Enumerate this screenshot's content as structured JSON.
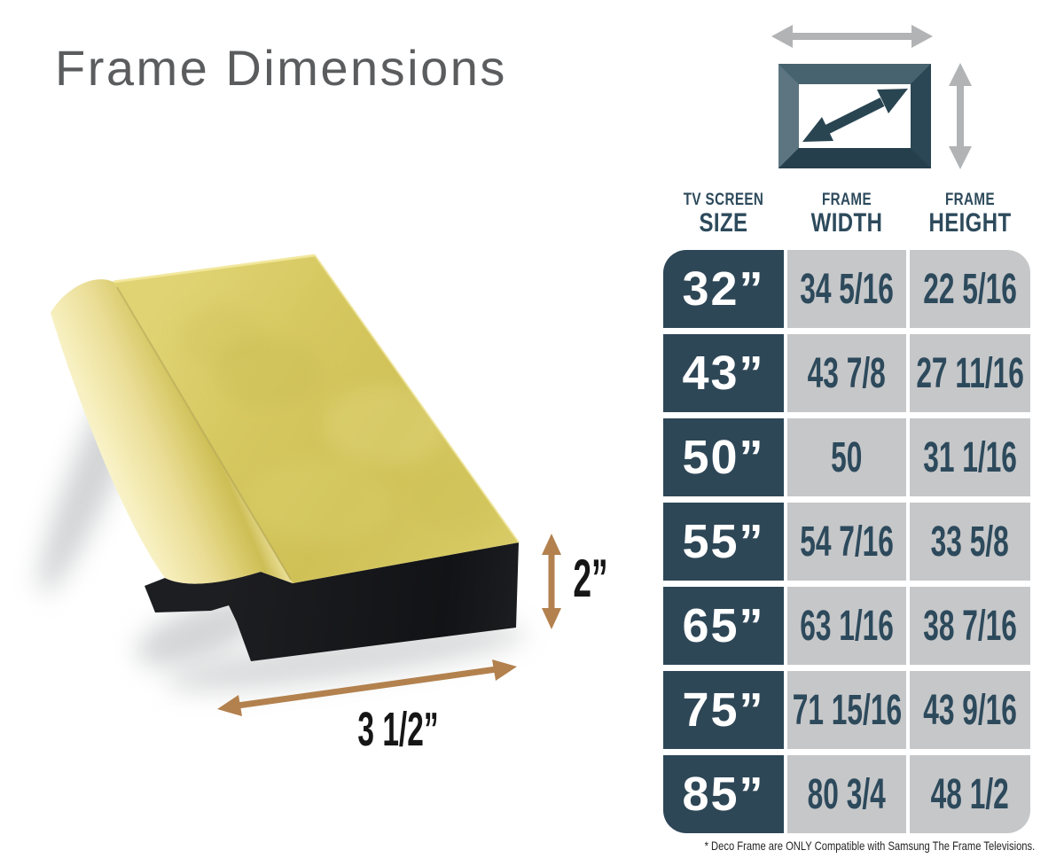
{
  "title": "Frame Dimensions",
  "illustration": {
    "height_label": "2”",
    "width_label": "3 1/2”"
  },
  "table": {
    "columns": [
      {
        "line1": "TV SCREEN",
        "line2": "SIZE"
      },
      {
        "line1": "FRAME",
        "line2": "WIDTH"
      },
      {
        "line1": "FRAME",
        "line2": "HEIGHT"
      }
    ],
    "rows": [
      {
        "size": "32”",
        "width": "34 5/16",
        "height": "22 5/16"
      },
      {
        "size": "43”",
        "width": "43 7/8",
        "height": "27 11/16"
      },
      {
        "size": "50”",
        "width": "50",
        "height": "31 1/16"
      },
      {
        "size": "55”",
        "width": "54 7/16",
        "height": "33 5/8"
      },
      {
        "size": "65”",
        "width": "63 1/16",
        "height": "38 7/16"
      },
      {
        "size": "75”",
        "width": "71 15/16",
        "height": "43 9/16"
      },
      {
        "size": "85”",
        "width": "80 3/4",
        "height": "48 1/2"
      }
    ]
  },
  "footnote": "* Deco Frame are ONLY Compatible with Samsung The Frame Televisions.",
  "colors": {
    "slate": "#2e4757",
    "cell_gray": "#c6c7c9",
    "arrow_gray": "#b1b3b5",
    "dimension_arrow_tan": "#b3814e",
    "gold": "#d5c75e",
    "moulding_black": "#17181b",
    "title_gray": "#5b5c5e"
  }
}
